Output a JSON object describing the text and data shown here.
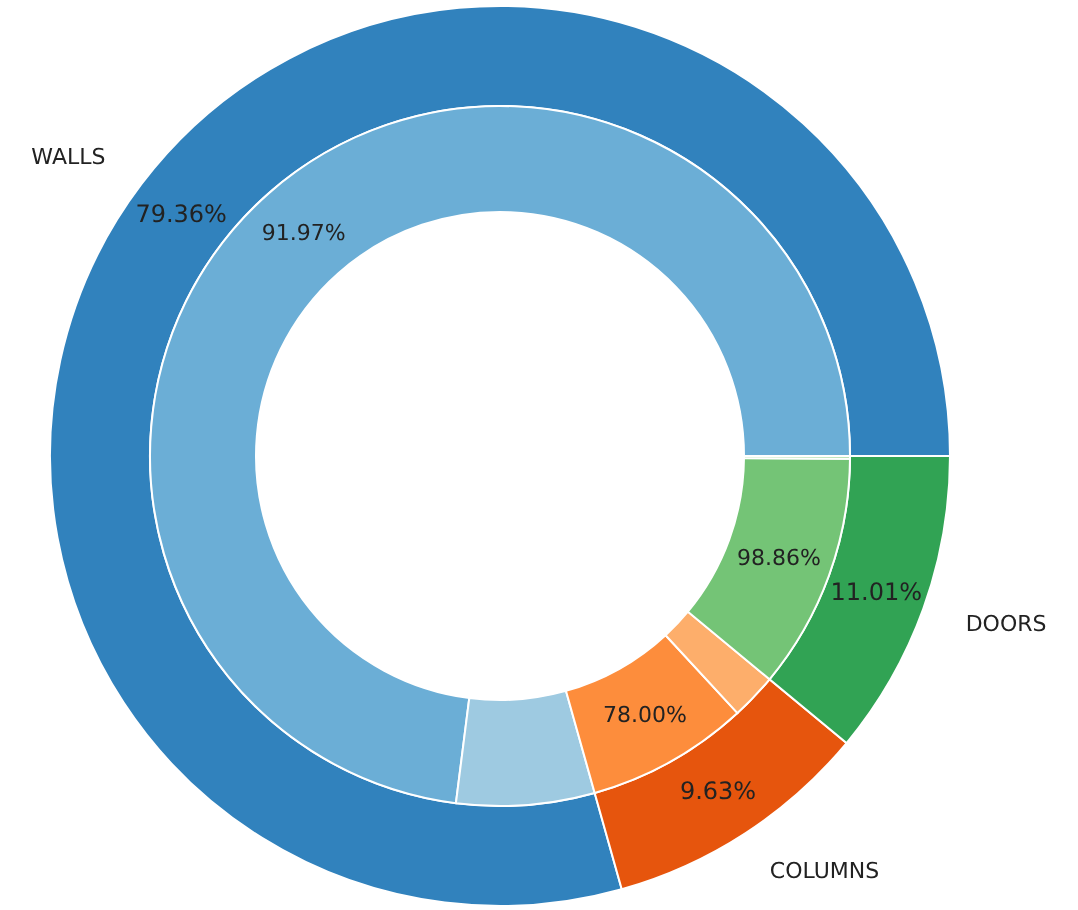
{
  "chart_data": [
    {
      "type": "donut",
      "categories": [
        "WALLS",
        "COLUMNS",
        "DOORS"
      ],
      "values": [
        79.36,
        9.63,
        11.01
      ],
      "colors": [
        "#3182bd",
        "#e6550d",
        "#31a354"
      ],
      "value_labels": [
        "79.36%",
        "9.63%",
        "11.01%"
      ]
    },
    {
      "type": "donut",
      "categories": [
        "91.97%",
        null,
        "78.00%",
        null,
        "98.86%",
        null
      ],
      "values": [
        72.99,
        6.37,
        7.51,
        2.12,
        10.88,
        0.13
      ],
      "colors": [
        "#6baed6",
        "#9ecae1",
        "#fd8d3c",
        "#fdae6b",
        "#74c476",
        "#a1d99b"
      ]
    }
  ]
}
